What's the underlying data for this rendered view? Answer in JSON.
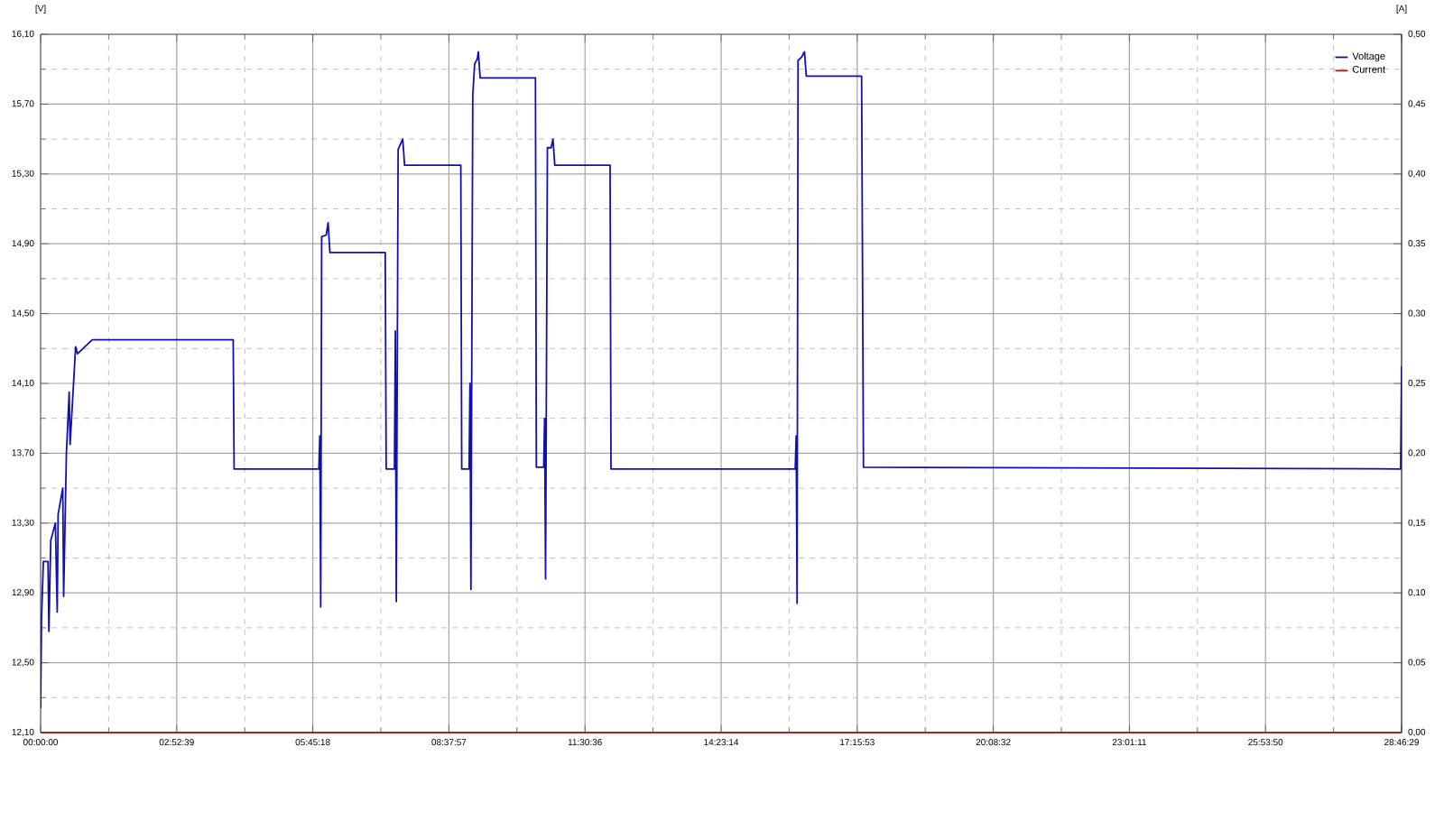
{
  "chart_data": {
    "type": "line",
    "ylabel": "[V]",
    "y2label": "[A]",
    "xlim": [
      0,
      28.7747
    ],
    "ylim": [
      12.1,
      16.1
    ],
    "y2lim": [
      0,
      0.5
    ],
    "xticks": [
      {
        "value": 0,
        "label": "00:00:00"
      },
      {
        "value": 2.87747,
        "label": "02:52:39"
      },
      {
        "value": 5.75494,
        "label": "05:45:18"
      },
      {
        "value": 8.63241,
        "label": "08:37:57"
      },
      {
        "value": 11.50988,
        "label": "11:30:36"
      },
      {
        "value": 14.38735,
        "label": "14:23:14"
      },
      {
        "value": 17.26482,
        "label": "17:15:53"
      },
      {
        "value": 20.14229,
        "label": "20:08:32"
      },
      {
        "value": 23.01976,
        "label": "23:01:11"
      },
      {
        "value": 25.89723,
        "label": "25:53:50"
      },
      {
        "value": 28.7747,
        "label": "28:46:29"
      }
    ],
    "yticks": [
      {
        "value": 12.1,
        "label": "12,10"
      },
      {
        "value": 12.5,
        "label": "12,50"
      },
      {
        "value": 12.9,
        "label": "12,90"
      },
      {
        "value": 13.3,
        "label": "13,30"
      },
      {
        "value": 13.7,
        "label": "13,70"
      },
      {
        "value": 14.1,
        "label": "14,10"
      },
      {
        "value": 14.5,
        "label": "14,50"
      },
      {
        "value": 14.9,
        "label": "14,90"
      },
      {
        "value": 15.3,
        "label": "15,30"
      },
      {
        "value": 15.7,
        "label": "15,70"
      },
      {
        "value": 16.1,
        "label": "16,10"
      }
    ],
    "y2ticks": [
      {
        "value": 0,
        "label": "0,00"
      },
      {
        "value": 0.05,
        "label": "0,05"
      },
      {
        "value": 0.1,
        "label": "0,10"
      },
      {
        "value": 0.15,
        "label": "0,15"
      },
      {
        "value": 0.2,
        "label": "0,20"
      },
      {
        "value": 0.25,
        "label": "0,25"
      },
      {
        "value": 0.3,
        "label": "0,30"
      },
      {
        "value": 0.35,
        "label": "0,35"
      },
      {
        "value": 0.4,
        "label": "0,40"
      },
      {
        "value": 0.45,
        "label": "0,45"
      },
      {
        "value": 0.5,
        "label": "0,50"
      }
    ],
    "grid": true,
    "legend": "top right",
    "line_style": "solid",
    "series": [
      {
        "name": "Voltage",
        "color": "#1010b0",
        "x": [
          0,
          0.019,
          0.058,
          0.156,
          0.175,
          0.214,
          0.312,
          0.351,
          0.37,
          0.468,
          0.487,
          0.545,
          0.604,
          0.623,
          0.74,
          0.779,
          1.091,
          4.072,
          4.091,
          5.883,
          5.903,
          5.922,
          5.942,
          6.039,
          6.078,
          6.117,
          7.286,
          7.306,
          7.481,
          7.5,
          7.52,
          7.559,
          7.656,
          7.695,
          8.884,
          8.903,
          9.059,
          9.078,
          9.098,
          9.137,
          9.176,
          9.234,
          9.254,
          9.293,
          10.462,
          10.481,
          10.637,
          10.656,
          10.676,
          10.715,
          10.793,
          10.832,
          10.871,
          12.04,
          12.059,
          15.955,
          15.975,
          15.994,
          16.014,
          16.092,
          16.15,
          16.189,
          17.358,
          17.397,
          28.755,
          28.7747
        ],
        "values": [
          12.24,
          12.75,
          13.08,
          13.08,
          12.68,
          13.2,
          13.3,
          12.79,
          13.35,
          13.5,
          12.88,
          13.7,
          14.05,
          13.75,
          14.31,
          14.27,
          14.35,
          14.35,
          13.61,
          13.61,
          13.8,
          12.82,
          14.94,
          14.95,
          15.02,
          14.85,
          14.85,
          13.61,
          13.61,
          14.4,
          12.85,
          15.44,
          15.5,
          15.35,
          15.35,
          13.61,
          13.61,
          14.1,
          12.92,
          15.75,
          15.93,
          15.96,
          16.0,
          15.85,
          15.85,
          13.62,
          13.62,
          13.9,
          12.98,
          15.45,
          15.45,
          15.5,
          15.35,
          15.35,
          13.61,
          13.61,
          13.8,
          12.84,
          15.95,
          15.97,
          16.0,
          15.86,
          15.86,
          13.62,
          13.61,
          14.2
        ]
      },
      {
        "name": "Current",
        "color": "#b02020",
        "axis": "y2",
        "x": [
          0,
          28.7747
        ],
        "values": [
          0,
          0
        ]
      }
    ]
  }
}
